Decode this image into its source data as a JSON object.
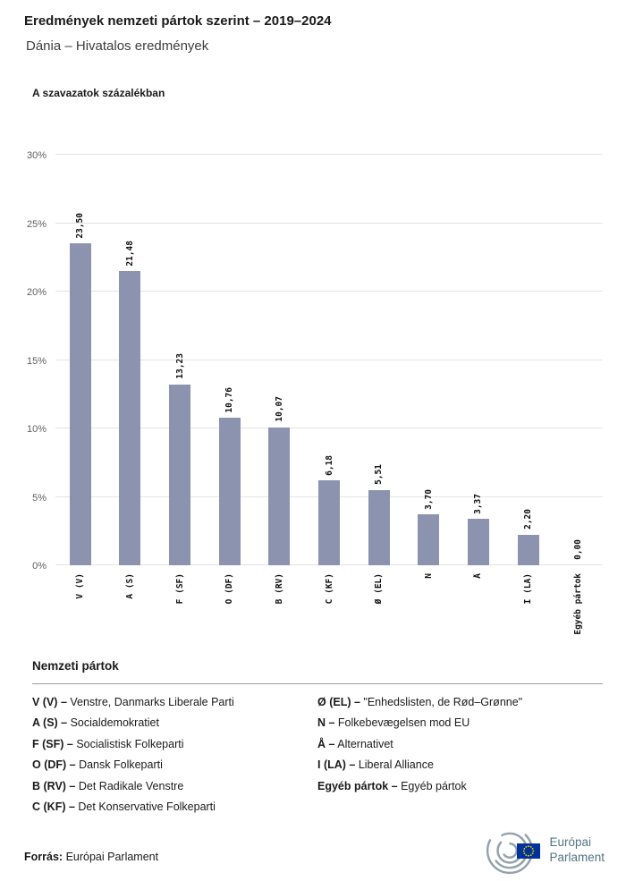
{
  "header": {
    "title": "Eredmények nemzeti pártok szerint – 2019–2024",
    "subtitle": "Dánia – Hivatalos eredmények"
  },
  "chart_data": {
    "type": "bar",
    "title": "A szavazatok százalékban",
    "categories": [
      "V (V)",
      "A (S)",
      "F (SF)",
      "O (DF)",
      "B (RV)",
      "C (KF)",
      "Ø (EL)",
      "N",
      "Å",
      "I (LA)",
      "Egyéb pártok"
    ],
    "values": [
      23.5,
      21.48,
      13.23,
      10.76,
      10.07,
      6.18,
      5.51,
      3.7,
      3.37,
      2.2,
      0.0
    ],
    "value_labels": [
      "23,50",
      "21,48",
      "13,23",
      "10,76",
      "10,07",
      "6,18",
      "5,51",
      "3,70",
      "3,37",
      "2,20",
      "0,00"
    ],
    "ylim": [
      0,
      30
    ],
    "yticks": [
      "0%",
      "5%",
      "10%",
      "15%",
      "20%",
      "25%",
      "30%"
    ],
    "bar_color": "#8b93af",
    "grid": true,
    "legend_position": "none"
  },
  "legend": {
    "heading": "Nemzeti pártok",
    "left": [
      {
        "abbr": "V (V) –",
        "name": "Venstre, Danmarks Liberale Parti"
      },
      {
        "abbr": "A (S) –",
        "name": "Socialdemokratiet"
      },
      {
        "abbr": "F (SF) –",
        "name": "Socialistisk Folkeparti"
      },
      {
        "abbr": "O (DF) –",
        "name": "Dansk Folkeparti"
      },
      {
        "abbr": "B (RV) –",
        "name": "Det Radikale Venstre"
      },
      {
        "abbr": "C (KF) –",
        "name": "Det Konservative Folkeparti"
      }
    ],
    "right": [
      {
        "abbr": "Ø (EL) –",
        "name": "\"Enhedslisten, de Rød–Grønne\""
      },
      {
        "abbr": "N –",
        "name": "Folkebevægelsen mod EU"
      },
      {
        "abbr": "Å –",
        "name": "Alternativet"
      },
      {
        "abbr": "I (LA) –",
        "name": "Liberal Alliance"
      },
      {
        "abbr": "Egyéb pártok –",
        "name": "Egyéb pártok"
      }
    ]
  },
  "footer": {
    "source_label": "Forrás:",
    "source_value": "Európai Parlament",
    "logo_line1": "Európai",
    "logo_line2": "Parlament"
  }
}
